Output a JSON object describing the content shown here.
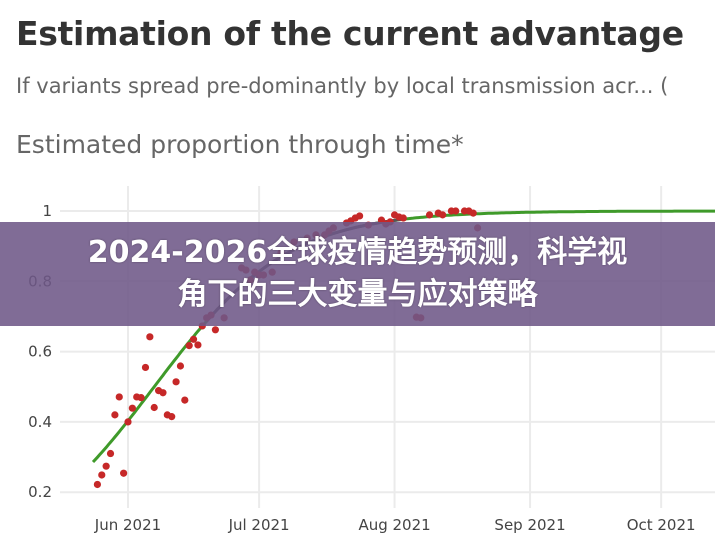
{
  "header": {
    "title": "Estimation of the current advantage",
    "subtitle": "If variants spread pre-dominantly by local transmission acr...",
    "subtitle_more": "(",
    "section_title": "Estimated proportion through time*"
  },
  "banner": {
    "line1": "2024-2026全球疫情趋势预测，科学视",
    "line2": "角下的三大变量与应对策略",
    "background": "#7d6a93"
  },
  "chart_data": {
    "type": "scatter",
    "title": "",
    "xlabel": "",
    "ylabel": "",
    "grid": true,
    "ylim": [
      0.15,
      1.03
    ],
    "xlim": [
      "2021-05-22",
      "2021-10-14"
    ],
    "y_ticks": [
      "0.2",
      "0.4",
      "0.6",
      "0.8",
      "1"
    ],
    "y_tick_values": [
      0.2,
      0.4,
      0.6,
      0.8,
      1
    ],
    "x_ticks": [
      "Jun 2021",
      "Jul 2021",
      "Aug 2021",
      "Sep 2021",
      "Oct 2021"
    ],
    "x_tick_values": [
      "2021-06-01",
      "2021-07-01",
      "2021-08-01",
      "2021-09-01",
      "2021-10-01"
    ],
    "colors": {
      "points": "#c62828",
      "fit": "#3f9a2a",
      "fit_observed_range": "#555555"
    },
    "fit": {
      "model": "logistic",
      "start": "2021-05-24",
      "end": "2021-10-14",
      "midpoint": "2021-06-07",
      "growth_per_day": 0.0654,
      "observed_range": [
        "2021-06-19",
        "2021-08-03"
      ]
    },
    "points": [
      [
        "2021-05-25",
        0.222
      ],
      [
        "2021-05-26",
        0.249
      ],
      [
        "2021-05-27",
        0.274
      ],
      [
        "2021-05-28",
        0.31
      ],
      [
        "2021-05-29",
        0.42
      ],
      [
        "2021-05-30",
        0.471
      ],
      [
        "2021-05-31",
        0.254
      ],
      [
        "2021-06-01",
        0.4
      ],
      [
        "2021-06-02",
        0.439
      ],
      [
        "2021-06-03",
        0.471
      ],
      [
        "2021-06-04",
        0.469
      ],
      [
        "2021-06-05",
        0.555
      ],
      [
        "2021-06-06",
        0.642
      ],
      [
        "2021-06-07",
        0.441
      ],
      [
        "2021-06-08",
        0.489
      ],
      [
        "2021-06-09",
        0.483
      ],
      [
        "2021-06-10",
        0.42
      ],
      [
        "2021-06-11",
        0.415
      ],
      [
        "2021-06-12",
        0.514
      ],
      [
        "2021-06-13",
        0.559
      ],
      [
        "2021-06-14",
        0.462
      ],
      [
        "2021-06-15",
        0.617
      ],
      [
        "2021-06-16",
        0.635
      ],
      [
        "2021-06-17",
        0.619
      ],
      [
        "2021-06-18",
        0.673
      ],
      [
        "2021-06-19",
        0.696
      ],
      [
        "2021-06-20",
        0.704
      ],
      [
        "2021-06-21",
        0.662
      ],
      [
        "2021-06-23",
        0.696
      ],
      [
        "2021-06-27",
        0.838
      ],
      [
        "2021-06-28",
        0.832
      ],
      [
        "2021-06-29",
        0.804
      ],
      [
        "2021-06-30",
        0.826
      ],
      [
        "2021-07-01",
        0.818
      ],
      [
        "2021-07-02",
        0.818
      ],
      [
        "2021-07-04",
        0.826
      ],
      [
        "2021-07-06",
        0.881
      ],
      [
        "2021-07-09",
        0.912
      ],
      [
        "2021-07-12",
        0.923
      ],
      [
        "2021-07-14",
        0.932
      ],
      [
        "2021-07-16",
        0.932
      ],
      [
        "2021-07-17",
        0.943
      ],
      [
        "2021-07-18",
        0.952
      ],
      [
        "2021-07-21",
        0.966
      ],
      [
        "2021-07-22",
        0.972
      ],
      [
        "2021-07-23",
        0.98
      ],
      [
        "2021-07-24",
        0.986
      ],
      [
        "2021-07-26",
        0.96
      ],
      [
        "2021-07-29",
        0.974
      ],
      [
        "2021-07-30",
        0.963
      ],
      [
        "2021-07-31",
        0.969
      ],
      [
        "2021-08-01",
        0.989
      ],
      [
        "2021-08-02",
        0.983
      ],
      [
        "2021-08-03",
        0.98
      ],
      [
        "2021-08-06",
        0.698
      ],
      [
        "2021-08-07",
        0.696
      ],
      [
        "2021-08-09",
        0.989
      ],
      [
        "2021-08-11",
        0.994
      ],
      [
        "2021-08-12",
        0.989
      ],
      [
        "2021-08-14",
        1.0
      ],
      [
        "2021-08-15",
        1.0
      ],
      [
        "2021-08-17",
        1.0
      ],
      [
        "2021-08-18",
        1.0
      ],
      [
        "2021-08-19",
        0.994
      ],
      [
        "2021-08-20",
        0.952
      ]
    ]
  }
}
